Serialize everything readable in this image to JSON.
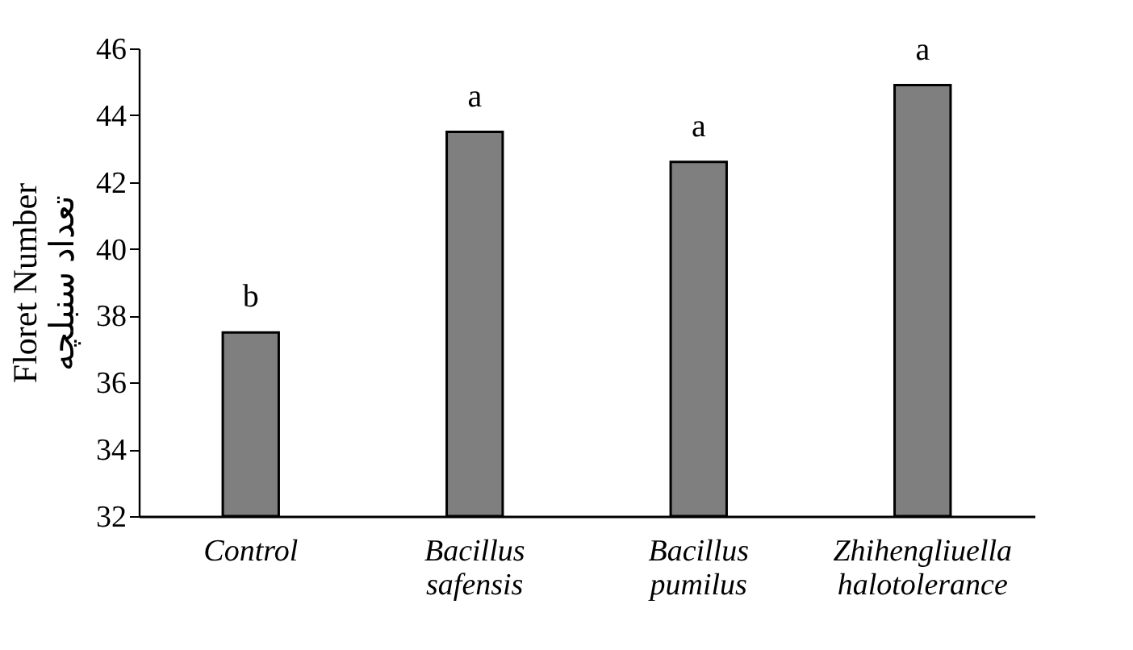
{
  "chart_data": {
    "type": "bar",
    "ylabel": "Floret Number\nتعداد سنبلچه",
    "categories": [
      "Control",
      "Bacillus\nsafensis",
      "Bacillus\npumilus",
      "Zhihengliuella\nhalotolerance"
    ],
    "values": [
      37.5,
      43.5,
      42.6,
      44.9
    ],
    "color": "#7f7f7f",
    "ylim": [
      32,
      46
    ],
    "yticks": [
      32,
      34,
      36,
      38,
      40,
      42,
      44,
      46
    ],
    "grid": false,
    "annotations": [
      {
        "text": "b",
        "x": "Control",
        "y": 37.5
      },
      {
        "text": "a",
        "x": "Bacillus\nsafensis",
        "y": 43.5
      },
      {
        "text": "a",
        "x": "Bacillus\npumilus",
        "y": 42.6
      },
      {
        "text": "a",
        "x": "Zhihengliuella\nhalotolerance",
        "y": 44.9
      }
    ]
  }
}
